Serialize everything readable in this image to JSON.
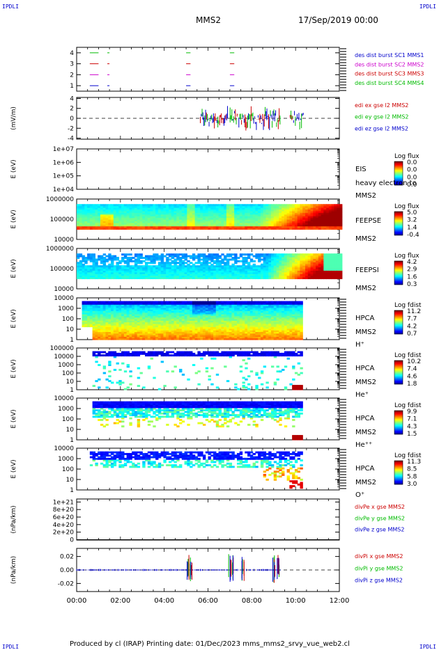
{
  "header": {
    "corner_left": "IPDLI",
    "corner_right": "IPDLI",
    "spacecraft": "MMS2",
    "date_time": "17/Sep/2019 00:00"
  },
  "footer": {
    "text": "Produced by cl (IRAP)   Printing date: 01/Dec/2023   mms_mms2_srvy_vue_web2.cl",
    "corner_left": "IPDLI",
    "corner_right": "IPDLI"
  },
  "x_axis": {
    "tick_labels": [
      "00:00",
      "02:00",
      "04:00",
      "06:00",
      "08:00",
      "10:00",
      "12:00"
    ],
    "range_hours": [
      0,
      12
    ]
  },
  "chart_data": [
    {
      "type": "line",
      "panel": "burst",
      "yticks": [
        "1",
        "2",
        "3",
        "4"
      ],
      "ylim": [
        0.5,
        4.5
      ],
      "legend": [
        {
          "text": "des dist burst SC1 MMS1",
          "color": "#0000cc"
        },
        {
          "text": "des dist burst SC2 MMS2",
          "color": "#cc00cc"
        },
        {
          "text": "des dist burst SC3 MMS3",
          "color": "#cc0000"
        },
        {
          "text": "des dist burst SC4 MMS4",
          "color": "#00bb00"
        }
      ],
      "series": [
        {
          "name": "des dist burst SC1 MMS1",
          "level": 1,
          "color": "#0000cc",
          "segments": [
            [
              0.6,
              1.0
            ],
            [
              1.4,
              1.5
            ],
            [
              5.0,
              5.2
            ],
            [
              7.0,
              7.2
            ]
          ]
        },
        {
          "name": "des dist burst SC2 MMS2",
          "level": 2,
          "color": "#cc00cc",
          "segments": [
            [
              0.6,
              1.0
            ],
            [
              1.4,
              1.5
            ],
            [
              5.0,
              5.2
            ],
            [
              7.0,
              7.2
            ]
          ]
        },
        {
          "name": "des dist burst SC3 MMS3",
          "level": 3,
          "color": "#cc0000",
          "segments": [
            [
              0.6,
              1.0
            ],
            [
              1.4,
              1.5
            ],
            [
              5.0,
              5.2
            ],
            [
              7.0,
              7.2
            ]
          ]
        },
        {
          "name": "des dist burst SC4 MMS4",
          "level": 4,
          "color": "#00bb00",
          "segments": [
            [
              0.6,
              1.0
            ],
            [
              1.4,
              1.5
            ],
            [
              5.0,
              5.2
            ],
            [
              7.0,
              7.2
            ]
          ]
        }
      ]
    },
    {
      "type": "line",
      "panel": "edi",
      "ylabel": "(mV/m)",
      "yticks": [
        "-4",
        "-2",
        "0",
        "2",
        "4"
      ],
      "ylim": [
        -4.2,
        4.2
      ],
      "legend": [
        {
          "text": "edi ex gse l2 MMS2",
          "color": "#cc0000"
        },
        {
          "text": "edi ey gse l2 MMS2",
          "color": "#00bb00"
        },
        {
          "text": "edi ez gse l2 MMS2",
          "color": "#0000cc"
        }
      ],
      "active_intervals_hours": [
        [
          5.65,
          9.3
        ],
        [
          9.75,
          10.35
        ]
      ],
      "zero_line": true
    },
    {
      "type": "heatmap",
      "panel": "eis",
      "ylabel": "E (eV)",
      "yticks": [
        "1e+04",
        "1e+05",
        "1e+06",
        "1e+07"
      ],
      "right_labels": [
        "EIS",
        "heavy electron to",
        "MMS2"
      ],
      "colorbar": {
        "label": "Log flux",
        "ticks": [
          "0.0",
          "0.0",
          "0.0",
          "0.0"
        ]
      },
      "empty": true
    },
    {
      "type": "heatmap",
      "panel": "feeps_e",
      "ylabel": "E (eV)",
      "yticks": [
        "10000",
        "100000",
        "1000000"
      ],
      "right_labels": [
        "FEEPSE",
        "MMS2"
      ],
      "colorbar": {
        "label": "Log flux",
        "ticks": [
          "5.0",
          "3.2",
          "1.4",
          "-0.4"
        ]
      }
    },
    {
      "type": "heatmap",
      "panel": "feeps_i",
      "ylabel": "E (eV)",
      "yticks": [
        "10000",
        "100000",
        "1000000"
      ],
      "right_labels": [
        "FEEPSI",
        "MMS2"
      ],
      "colorbar": {
        "label": "Log flux",
        "ticks": [
          "4.2",
          "2.9",
          "1.6",
          "0.3"
        ]
      }
    },
    {
      "type": "heatmap",
      "panel": "hpca_h",
      "ylabel": "E (eV)",
      "yticks": [
        "1",
        "10",
        "100",
        "1000",
        "10000"
      ],
      "right_labels": [
        "HPCA",
        "MMS2",
        "H⁺"
      ],
      "colorbar": {
        "label": "Log fdist",
        "ticks": [
          "11.2",
          "7.7",
          "4.2",
          "0.7"
        ]
      }
    },
    {
      "type": "heatmap",
      "panel": "hpca_he1",
      "ylabel": "E (eV)",
      "yticks": [
        "1",
        "10",
        "100",
        "1000",
        "10000",
        "100000"
      ],
      "right_labels": [
        "HPCA",
        "MMS2",
        "He⁺"
      ],
      "colorbar": {
        "label": "Log fdist",
        "ticks": [
          "10.2",
          "7.4",
          "4.6",
          "1.8"
        ]
      }
    },
    {
      "type": "heatmap",
      "panel": "hpca_he2",
      "ylabel": "E (eV)",
      "yticks": [
        "1",
        "10",
        "100",
        "1000",
        "10000"
      ],
      "right_labels": [
        "HPCA",
        "MMS2",
        "He⁺⁺"
      ],
      "colorbar": {
        "label": "Log fdist",
        "ticks": [
          "9.9",
          "7.1",
          "4.3",
          "1.5"
        ]
      }
    },
    {
      "type": "heatmap",
      "panel": "hpca_o",
      "ylabel": "E (eV)",
      "yticks": [
        "1",
        "10",
        "100",
        "1000",
        "10000"
      ],
      "right_labels": [
        "HPCA",
        "MMS2",
        "O⁺"
      ],
      "colorbar": {
        "label": "Log fdist",
        "ticks": [
          "11.3",
          "8.5",
          "5.8",
          "3.0"
        ]
      }
    },
    {
      "type": "line",
      "panel": "divpe",
      "ylabel": "(nPa/km)",
      "yticks": [
        "0",
        "2e+20",
        "4e+20",
        "6e+20",
        "8e+20",
        "1e+21"
      ],
      "ylim": [
        -1e+19,
        1.08e+21
      ],
      "legend": [
        {
          "text": "divPe x gse MMS2",
          "color": "#cc0000"
        },
        {
          "text": "divPe y gse MMS2",
          "color": "#00bb00"
        },
        {
          "text": "divPe z gse MMS2",
          "color": "#0000cc"
        }
      ],
      "series_values": "flat at 0"
    },
    {
      "type": "line",
      "panel": "divpi",
      "ylabel": "(nPa/km)",
      "yticks": [
        "-0.02",
        "0.00",
        "0.02"
      ],
      "ylim": [
        -0.032,
        0.032
      ],
      "legend": [
        {
          "text": "divPi x gse MMS2",
          "color": "#cc0000"
        },
        {
          "text": "divPi y gse MMS2",
          "color": "#00bb00"
        },
        {
          "text": "divPi z gse MMS2",
          "color": "#0000cc"
        }
      ],
      "spike_times_hours": [
        5.1,
        5.25,
        7.0,
        7.1,
        7.6,
        9.0,
        9.2
      ],
      "zero_line": true
    }
  ]
}
